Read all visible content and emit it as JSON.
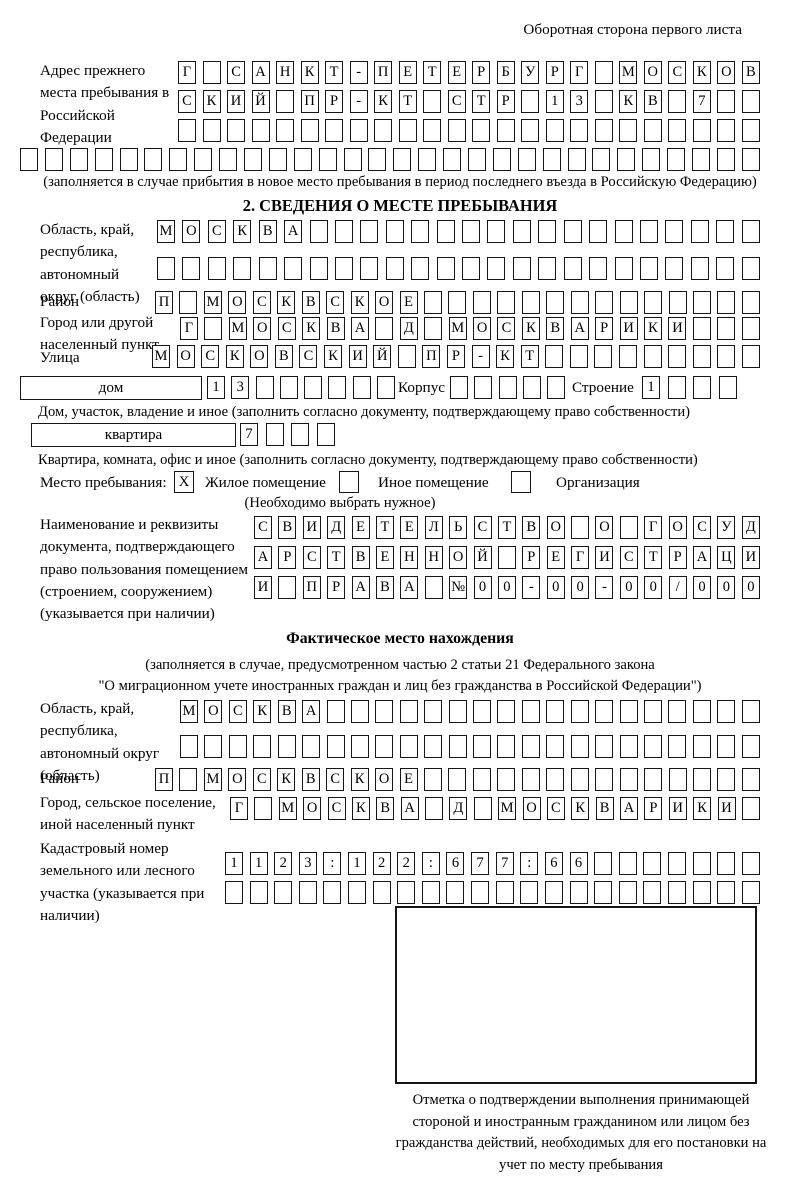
{
  "page": {
    "header_note": "Оборотная сторона первого листа"
  },
  "prev_address": {
    "label": "Адрес прежнего места пребывания в Российской Федерации",
    "row1": "Г САНКТ-ПЕТЕРБУРГ МОСКОВ",
    "row2": "СКИЙ ПР-КТ СТР 13 КВ 7  ",
    "row3": "                        ",
    "row4": "                              ",
    "note": "(заполняется в случае прибытия в новое место пребывания в период последнего въезда в Российскую Федерацию)"
  },
  "section2": {
    "title": "2. СВЕДЕНИЯ О МЕСТЕ ПРЕБЫВАНИЯ",
    "region_label": "Область, край, республика, автономный округ (область)",
    "region_row1": "МОСКВА                  ",
    "region_row2": "                        ",
    "district_label": "Район",
    "district_row": "П МОСКВСКОЕ              ",
    "city_label": "Город или другой населенный пункт",
    "city_row": "Г МОСКВА Д МОСКВАРИКИ   ",
    "street_label": "Улица",
    "street_row": "МОСКОВСКИЙ ПР-КТ         ",
    "house_box_label": "дом",
    "house_cells": "13      ",
    "korpus_label": "Корпус",
    "korpus_cells": "     ",
    "stroenie_label": "Строение",
    "stroenie_cells": "1   ",
    "house_note": "Дом, участок, владение и иное (заполнить согласно документу, подтверждающему право собственности)",
    "apt_box_label": "квартира",
    "apt_cells": "7   ",
    "apt_note": "Квартира, комната, офис и иное (заполнить согласно документу, подтверждающему право собственности)"
  },
  "placement": {
    "label": "Место пребывания:",
    "options": [
      {
        "label": "Жилое помещение",
        "mark": "X"
      },
      {
        "label": "Иное помещение",
        "mark": ""
      },
      {
        "label": "Организация",
        "mark": ""
      }
    ],
    "note": "(Необходимо выбрать нужное)"
  },
  "document": {
    "label": "Наименование и реквизиты документа, подтверждающего право пользования помещением (строением, сооружением) (указывается при наличии)",
    "row1": "СВИДЕТЕЛЬСТВО О ГОСУД",
    "row2": "АРСТВЕННОЙ РЕГИСТРАЦИ",
    "row3": "И ПРАВА №00-00-00/000"
  },
  "actual": {
    "title": "Фактическое место нахождения",
    "note1": "(заполняется в случае, предусмотренном частью 2 статьи 21 Федерального закона",
    "note2": "\"О миграционном учете иностранных граждан и лиц без гражданства в Российской Федерации\")",
    "region_label": "Область, край, республика, автономный округ (область)",
    "region_row1": "МОСКВА                  ",
    "region_row2": "                        ",
    "district_label": "Район",
    "district_row": "П МОСКВСКОЕ              ",
    "city_label": "Город, сельское поселение, иной населенный пункт",
    "city_row": "Г МОСКВА Д МОСКВАРИКИ ",
    "cadastre_label": "Кадастровый номер земельного или лесного участка (указывается при наличии)",
    "cadastre_row1": "1123:122:677:66       ",
    "cadastre_row2": "                      "
  },
  "stamp": {
    "caption": "Отметка о подтверждении выполнения принимающей стороной и иностранным гражданином или лицом без гражданства действий, необходимых для его постановки на учет по месту пребывания"
  }
}
